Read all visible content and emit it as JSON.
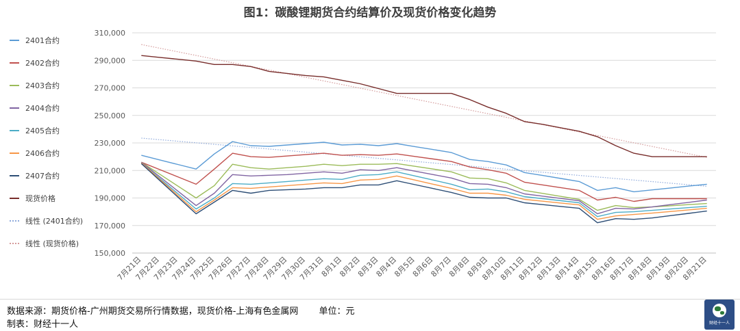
{
  "title": "图1：碳酸锂期货合约结算价及现货价格变化趋势",
  "footer": {
    "source": "数据来源：期货价格-广州期货交易所行情数据，现货价格-上海有色金属网",
    "unit": "单位：元",
    "maker": "制表：财经十一人"
  },
  "logo_text": "财经十一人",
  "chart_data": {
    "type": "line",
    "title": "图1：碳酸锂期货合约结算价及现货价格变化趋势",
    "xlabel": "",
    "ylabel": "",
    "ylim": [
      150000,
      310000
    ],
    "yticks": [
      150000,
      170000,
      190000,
      210000,
      230000,
      250000,
      270000,
      290000,
      310000
    ],
    "ytick_labels": [
      "150,000",
      "170,000",
      "190,000",
      "210,000",
      "230,000",
      "250,000",
      "270,000",
      "290,000",
      "310,000"
    ],
    "grid": "horizontal",
    "legend_position": "left",
    "categories": [
      "7月21日",
      "7月22日",
      "7月23日",
      "7月24日",
      "7月25日",
      "7月26日",
      "7月27日",
      "7月28日",
      "7月29日",
      "7月30日",
      "7月31日",
      "8月1日",
      "8月2日",
      "8月3日",
      "8月4日",
      "8月5日",
      "8月6日",
      "8月7日",
      "8月8日",
      "8月9日",
      "8月10日",
      "8月11日",
      "8月12日",
      "8月13日",
      "8月14日",
      "8月15日",
      "8月16日",
      "8月17日",
      "8月18日",
      "8月19日",
      "8月20日",
      "8月21日"
    ],
    "series": [
      {
        "name": "2401合约",
        "color": "#5b9bd5",
        "values": [
          221000,
          null,
          null,
          211000,
          222000,
          231000,
          228000,
          227500,
          228500,
          229500,
          230500,
          228500,
          229000,
          228000,
          229500,
          null,
          null,
          223000,
          218000,
          216500,
          214000,
          208500,
          null,
          null,
          202000,
          195500,
          197500,
          194500,
          null,
          null,
          null,
          200000
        ]
      },
      {
        "name": "2402合约",
        "color": "#c0504d",
        "values": [
          216000,
          null,
          null,
          200000,
          211000,
          222500,
          220000,
          219500,
          220500,
          221500,
          222500,
          221000,
          221500,
          221000,
          222000,
          null,
          null,
          216500,
          212500,
          210500,
          208000,
          201500,
          null,
          null,
          195500,
          188500,
          190500,
          187500,
          189500,
          null,
          null,
          189500
        ]
      },
      {
        "name": "2403合约",
        "color": "#9bbb59",
        "values": [
          216000,
          null,
          null,
          190000,
          199000,
          214500,
          212000,
          211000,
          212000,
          213000,
          214500,
          213500,
          214500,
          214500,
          215000,
          null,
          null,
          209000,
          204500,
          204000,
          201000,
          195500,
          null,
          null,
          189000,
          181000,
          184500,
          183000,
          183500,
          null,
          null,
          186000
        ]
      },
      {
        "name": "2404合约",
        "color": "#8064a2",
        "values": [
          216000,
          null,
          null,
          184500,
          193500,
          207000,
          206000,
          206500,
          207000,
          208000,
          209000,
          208000,
          210500,
          210000,
          212000,
          null,
          null,
          204500,
          200500,
          200000,
          197500,
          193000,
          null,
          null,
          188000,
          178500,
          182500,
          182000,
          183500,
          null,
          null,
          188500
        ]
      },
      {
        "name": "2405合约",
        "color": "#4bacc6",
        "values": [
          215500,
          null,
          null,
          182000,
          190000,
          200500,
          200000,
          201000,
          202000,
          203000,
          204000,
          203500,
          206500,
          207000,
          209000,
          null,
          null,
          200000,
          196000,
          196500,
          194500,
          191000,
          null,
          null,
          186500,
          176500,
          179500,
          180000,
          181000,
          null,
          null,
          184000
        ]
      },
      {
        "name": "2406合约",
        "color": "#f79646",
        "values": [
          215500,
          null,
          null,
          180000,
          188500,
          197500,
          197000,
          198000,
          199000,
          200000,
          201000,
          200500,
          203000,
          203500,
          206000,
          null,
          null,
          197000,
          193500,
          193500,
          192000,
          189000,
          null,
          null,
          185000,
          174500,
          177000,
          178000,
          179000,
          null,
          null,
          182500
        ]
      },
      {
        "name": "2407合约",
        "color": "#2c4d75",
        "values": [
          215000,
          null,
          null,
          178500,
          187000,
          195500,
          193500,
          195500,
          196000,
          196500,
          197500,
          197500,
          199500,
          199500,
          202500,
          null,
          null,
          194000,
          190500,
          190000,
          190000,
          186500,
          null,
          null,
          182500,
          172000,
          175000,
          174500,
          175500,
          null,
          null,
          180500
        ]
      },
      {
        "name": "现货价格",
        "color": "#772c2a",
        "values": [
          293500,
          null,
          null,
          289500,
          287000,
          287000,
          285500,
          282000,
          280500,
          279000,
          278000,
          275500,
          273000,
          269500,
          266000,
          266000,
          266000,
          266000,
          261500,
          256000,
          251500,
          245500,
          243500,
          241000,
          238500,
          234500,
          228000,
          222500,
          220000,
          220000,
          220000,
          220000
        ]
      }
    ],
    "trendlines": [
      {
        "name": "线性 (2401合约)",
        "color": "#8ea9db",
        "style": "dotted",
        "from_value": 233500,
        "to_value": 198500
      },
      {
        "name": "线性 (现货价格)",
        "color": "#d49a9a",
        "style": "dotted",
        "from_value": 301500,
        "to_value": 219500
      }
    ]
  }
}
